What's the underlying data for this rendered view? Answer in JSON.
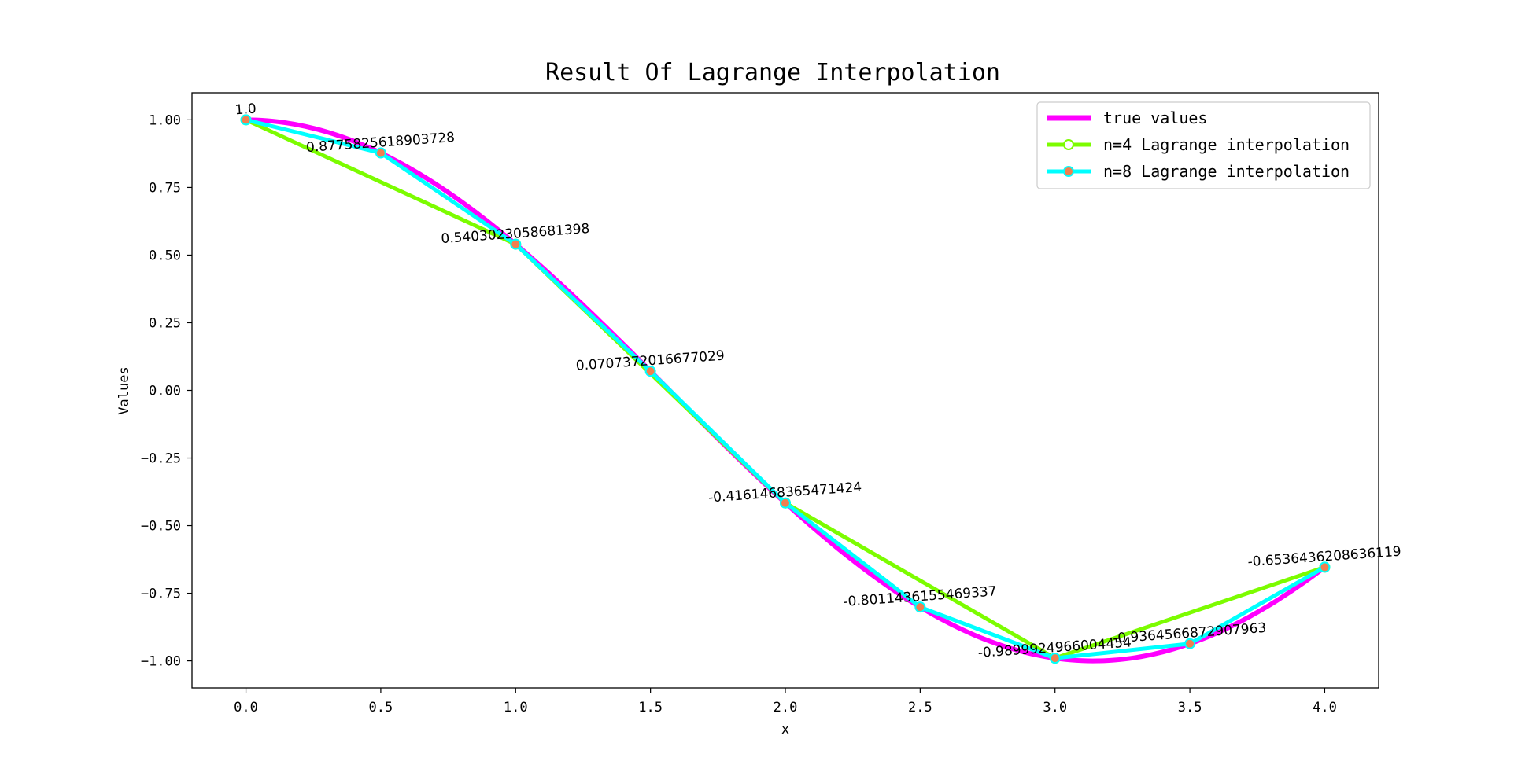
{
  "chart_data": {
    "type": "line",
    "title": "Result Of Lagrange Interpolation",
    "xlabel": "x",
    "ylabel": "Values",
    "xlim": [
      -0.2,
      4.2
    ],
    "ylim": [
      -1.1,
      1.1
    ],
    "xticks": [
      0.0,
      0.5,
      1.0,
      1.5,
      2.0,
      2.5,
      3.0,
      3.5,
      4.0
    ],
    "xtick_labels": [
      "0.0",
      "0.5",
      "1.0",
      "1.5",
      "2.0",
      "2.5",
      "3.0",
      "3.5",
      "4.0"
    ],
    "yticks": [
      1.0,
      0.75,
      0.5,
      0.25,
      0.0,
      -0.25,
      -0.5,
      -0.75,
      -1.0
    ],
    "ytick_labels": [
      "1.00",
      "0.75",
      "0.50",
      "0.25",
      "0.00",
      "−0.25",
      "−0.50",
      "−0.75",
      "−1.00"
    ],
    "grid": false,
    "legend_position": "top-right",
    "series": [
      {
        "name": "true values",
        "function": "cos(x)",
        "x_range": [
          0,
          4
        ],
        "color": "#ff00ff"
      },
      {
        "name": "n=4 Lagrange interpolation",
        "x": [
          0.0,
          1.0,
          2.0,
          3.0,
          4.0
        ],
        "y": [
          1.0,
          0.5403023058681398,
          -0.4161468365471424,
          -0.9899924966004454,
          -0.6536436208636119
        ],
        "color": "#7cfc00",
        "marker_face": "#ffffff",
        "marker_edge": "#7cfc00"
      },
      {
        "name": "n=8 Lagrange interpolation",
        "x": [
          0.0,
          0.5,
          1.0,
          1.5,
          2.0,
          2.5,
          3.0,
          3.5,
          4.0
        ],
        "y": [
          1.0,
          0.8775825618903728,
          0.5403023058681398,
          0.0707372016677029,
          -0.4161468365471424,
          -0.8011436155469337,
          -0.9899924966004454,
          -0.9364566872907963,
          -0.6536436208636119
        ],
        "color": "#00ffff",
        "marker_face": "#f08050",
        "marker_edge": "#00ffff"
      }
    ],
    "annotations": [
      {
        "x": 0.0,
        "y": 1.0,
        "text": "1.0"
      },
      {
        "x": 0.5,
        "y": 0.8775825618903728,
        "text": "0.8775825618903728"
      },
      {
        "x": 1.0,
        "y": 0.5403023058681398,
        "text": "0.5403023058681398"
      },
      {
        "x": 1.5,
        "y": 0.0707372016677029,
        "text": "0.0707372016677029"
      },
      {
        "x": 2.0,
        "y": -0.4161468365471424,
        "text": "-0.4161468365471424"
      },
      {
        "x": 2.5,
        "y": -0.8011436155469337,
        "text": "-0.8011436155469337"
      },
      {
        "x": 3.0,
        "y": -0.9899924966004454,
        "text": "-0.9899924966004454"
      },
      {
        "x": 3.5,
        "y": -0.9364566872907963,
        "text": "-0.9364566872907963"
      },
      {
        "x": 4.0,
        "y": -0.6536436208636119,
        "text": "-0.6536436208636119"
      }
    ]
  }
}
